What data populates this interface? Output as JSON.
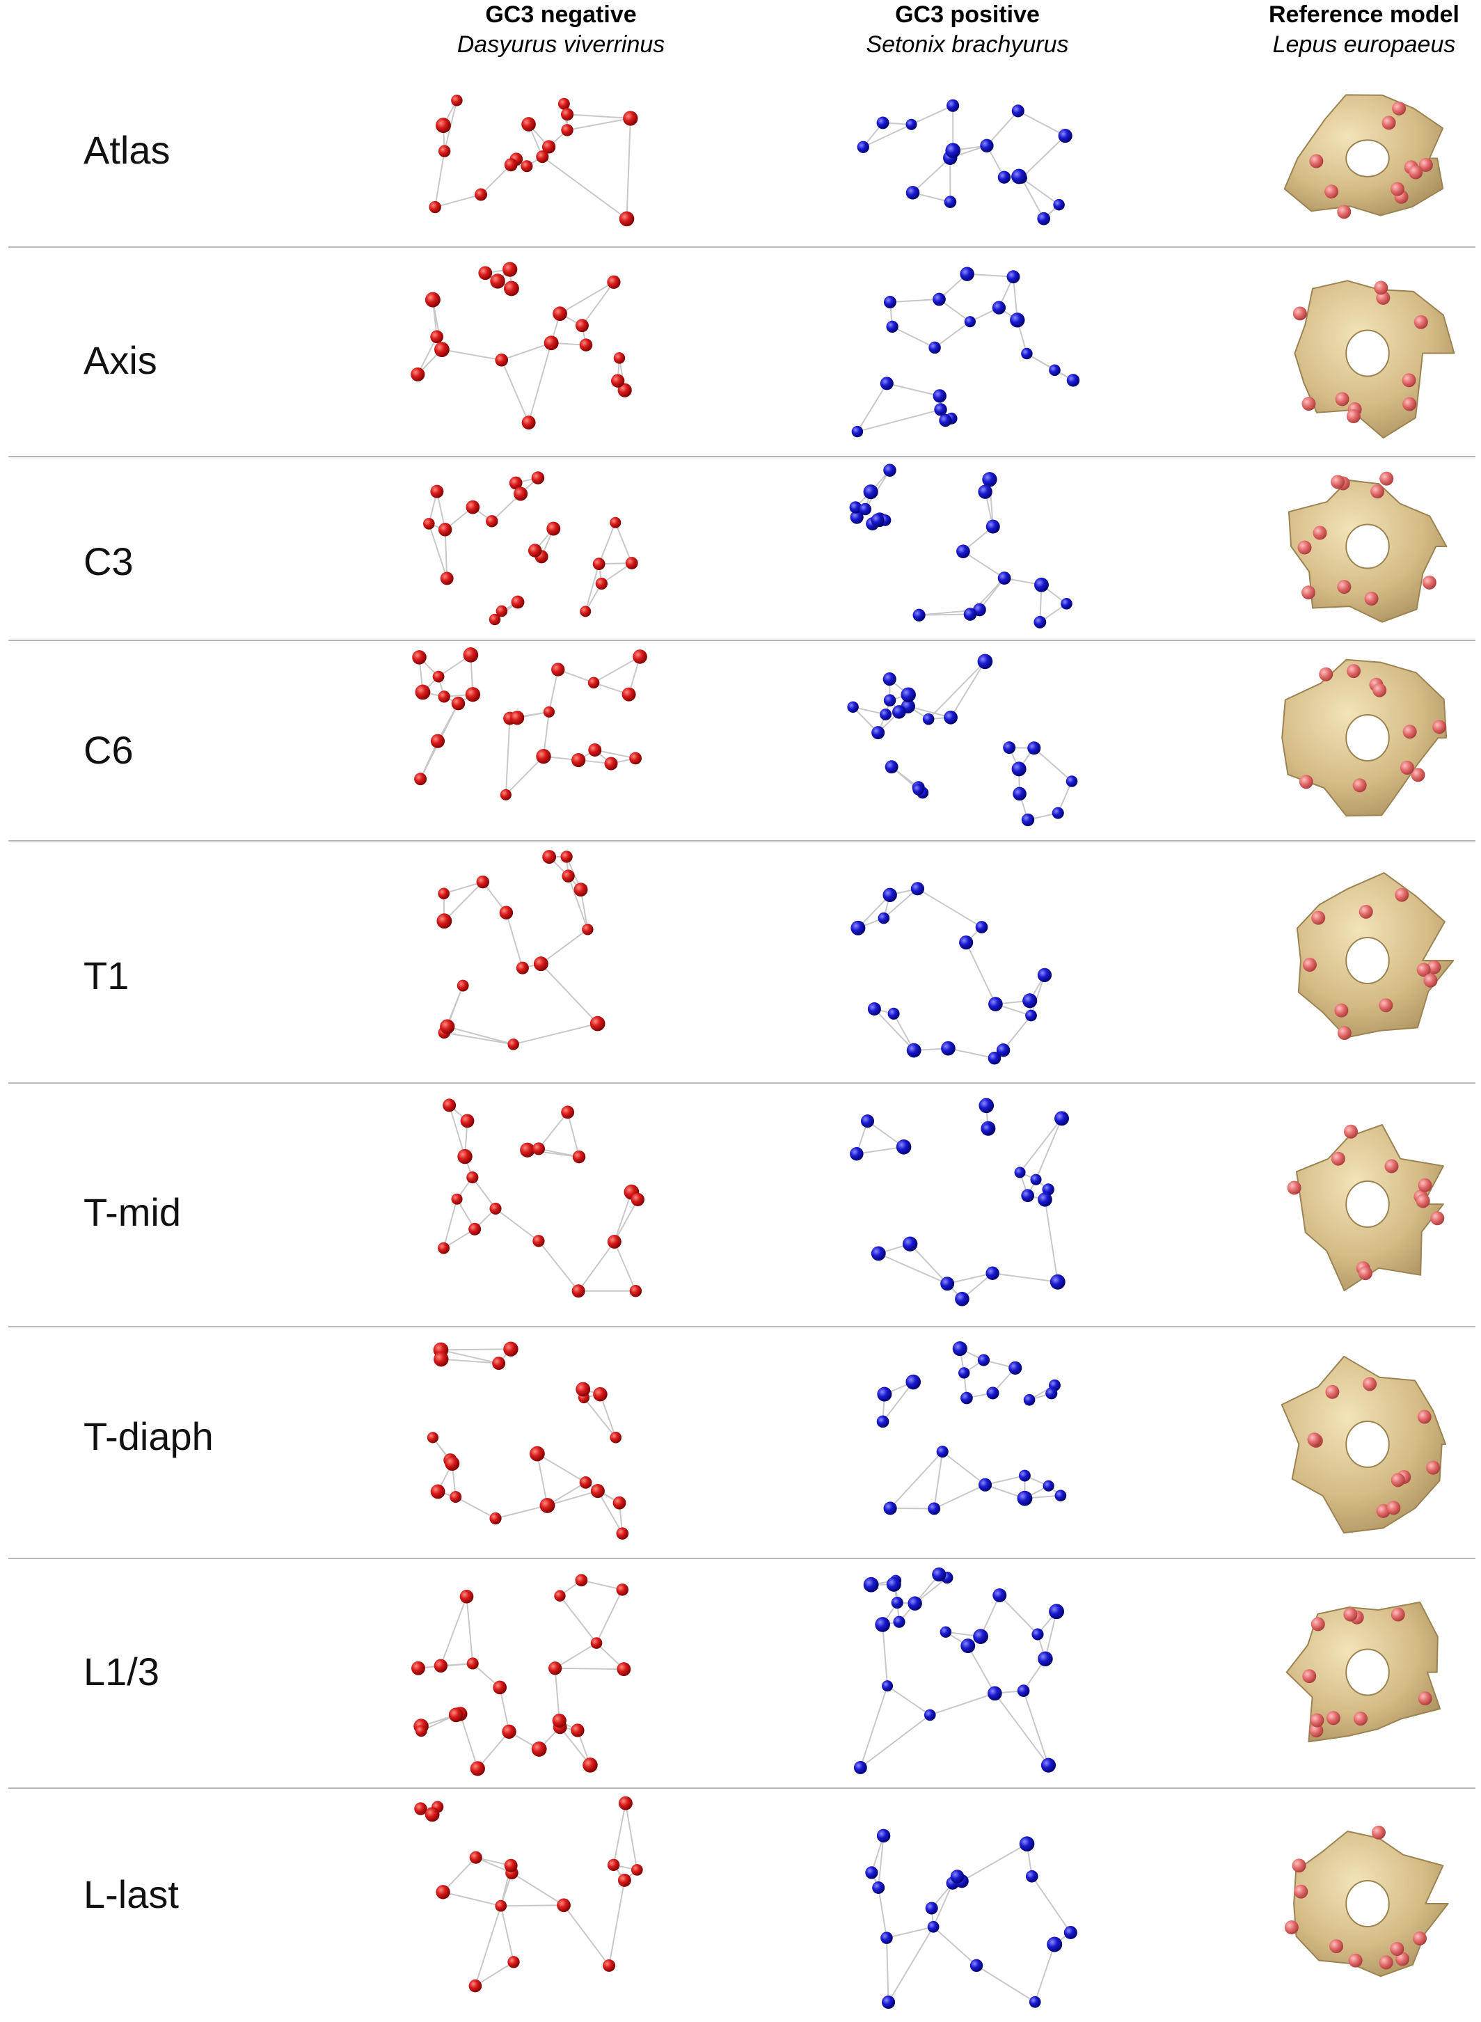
{
  "columns": [
    {
      "title": "GC3 negative",
      "species": "Dasyurus viverrinus"
    },
    {
      "title": "GC3 positive",
      "species": "Setonix brachyurus"
    },
    {
      "title": "Reference model",
      "species": "Lepus europaeus"
    }
  ],
  "rows": [
    "Atlas",
    "Axis",
    "C3",
    "C6",
    "T1",
    "T-mid",
    "T-diaph",
    "L1/3",
    "L-last"
  ],
  "colors": {
    "negative_landmarks": "#cc1a14",
    "positive_landmarks": "#1a1ac8",
    "reference_bone": "#d8c08a",
    "reference_landmarks": "#e86a6a",
    "wireframe": "#c8c8c8",
    "divider": "#b9b9b9"
  }
}
